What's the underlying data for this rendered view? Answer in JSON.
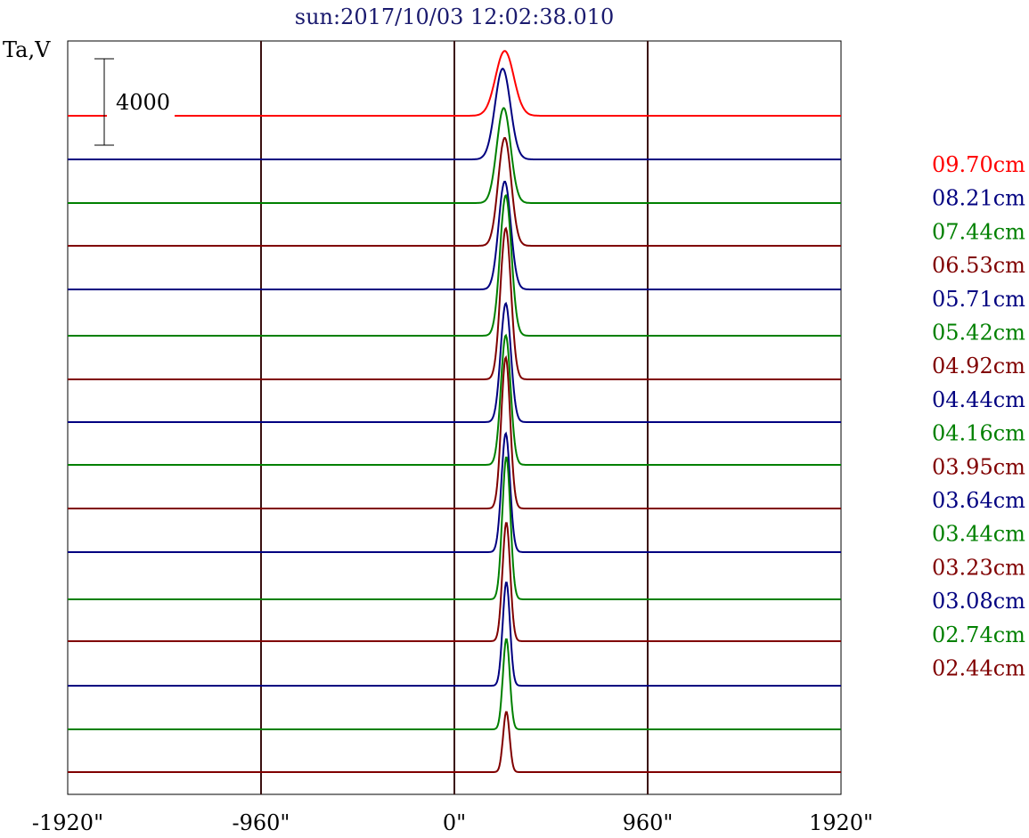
{
  "chart_data": {
    "type": "line",
    "title": "sun:2017/10/03 12:02:38.010",
    "ylabel": "Ta,V",
    "xlabel": "",
    "xlim": [
      -1920,
      1920
    ],
    "x_ticks": [
      {
        "value": -1920,
        "label": "-1920\""
      },
      {
        "value": -960,
        "label": "-960\""
      },
      {
        "value": 0,
        "label": "0\""
      },
      {
        "value": 960,
        "label": "960\""
      },
      {
        "value": 1920,
        "label": "1920\""
      }
    ],
    "vertical_lines": [
      -960,
      0,
      960
    ],
    "scale_bar": {
      "value": 4000,
      "label": "4000"
    },
    "grid": false,
    "legend_position": "right",
    "series": [
      {
        "name": "09.70cm",
        "color": "#ff0000",
        "peak_x": 250,
        "peak_amp": 3000,
        "peak_width": 45
      },
      {
        "name": "08.21cm",
        "color": "#000080",
        "peak_x": 240,
        "peak_amp": 4200,
        "peak_width": 38
      },
      {
        "name": "07.44cm",
        "color": "#008000",
        "peak_x": 245,
        "peak_amp": 4400,
        "peak_width": 34
      },
      {
        "name": "06.53cm",
        "color": "#800000",
        "peak_x": 250,
        "peak_amp": 5000,
        "peak_width": 32
      },
      {
        "name": "05.71cm",
        "color": "#000080",
        "peak_x": 250,
        "peak_amp": 5000,
        "peak_width": 30
      },
      {
        "name": "05.42cm",
        "color": "#008000",
        "peak_x": 255,
        "peak_amp": 6500,
        "peak_width": 28
      },
      {
        "name": "04.92cm",
        "color": "#800000",
        "peak_x": 255,
        "peak_amp": 7000,
        "peak_width": 26
      },
      {
        "name": "04.44cm",
        "color": "#000080",
        "peak_x": 255,
        "peak_amp": 5500,
        "peak_width": 25
      },
      {
        "name": "04.16cm",
        "color": "#008000",
        "peak_x": 255,
        "peak_amp": 6000,
        "peak_width": 24
      },
      {
        "name": "03.95cm",
        "color": "#800000",
        "peak_x": 255,
        "peak_amp": 7000,
        "peak_width": 22
      },
      {
        "name": "03.64cm",
        "color": "#000080",
        "peak_x": 255,
        "peak_amp": 5500,
        "peak_width": 21
      },
      {
        "name": "03.44cm",
        "color": "#008000",
        "peak_x": 258,
        "peak_amp": 6600,
        "peak_width": 20
      },
      {
        "name": "03.23cm",
        "color": "#800000",
        "peak_x": 258,
        "peak_amp": 5500,
        "peak_width": 19
      },
      {
        "name": "03.08cm",
        "color": "#000080",
        "peak_x": 258,
        "peak_amp": 4800,
        "peak_width": 18
      },
      {
        "name": "02.74cm",
        "color": "#008000",
        "peak_x": 258,
        "peak_amp": 4200,
        "peak_width": 17
      },
      {
        "name": "02.44cm",
        "color": "#800000",
        "peak_x": 258,
        "peak_amp": 2800,
        "peak_width": 16
      }
    ]
  }
}
